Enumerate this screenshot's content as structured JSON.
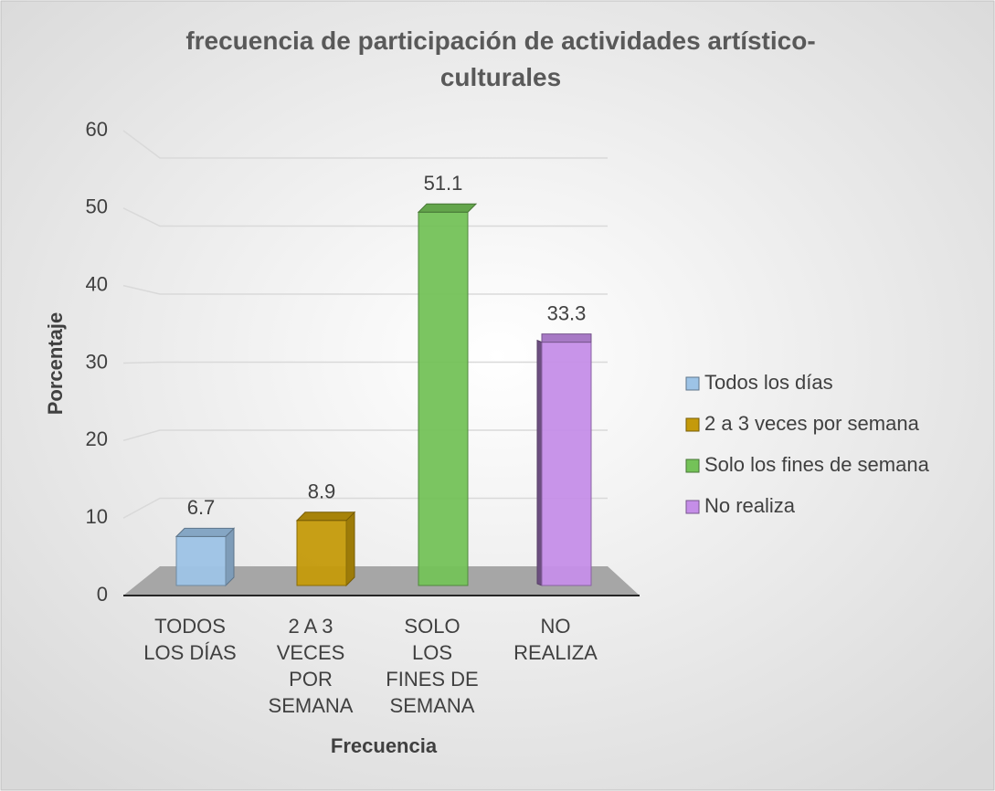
{
  "chart_data": {
    "type": "bar3d",
    "title": "frecuencia de participación de actividades artístico-culturales",
    "x_label": "Frecuencia",
    "y_label": "Porcentaje",
    "categories": [
      "TODOS LOS DÍAS",
      "2 A 3 VECES POR SEMANA",
      "SOLO LOS FINES DE SEMANA",
      "NO REALIZA"
    ],
    "series": [
      {
        "name": "Todos los días",
        "color": "#9dc3e6",
        "values": [
          6.7,
          null,
          null,
          null
        ]
      },
      {
        "name": "2 a 3 veces por semana",
        "color": "#c49a0a",
        "values": [
          null,
          8.9,
          null,
          null
        ]
      },
      {
        "name": "Solo los fines de semana",
        "color": "#74c258",
        "values": [
          null,
          null,
          51.1,
          null
        ]
      },
      {
        "name": "No realiza",
        "color": "#c58ee8",
        "values": [
          null,
          null,
          null,
          33.3
        ]
      }
    ],
    "ylim": [
      0,
      60
    ],
    "yticks": [
      0,
      10,
      20,
      30,
      40,
      50,
      60
    ],
    "grid": true,
    "legend": "right"
  }
}
